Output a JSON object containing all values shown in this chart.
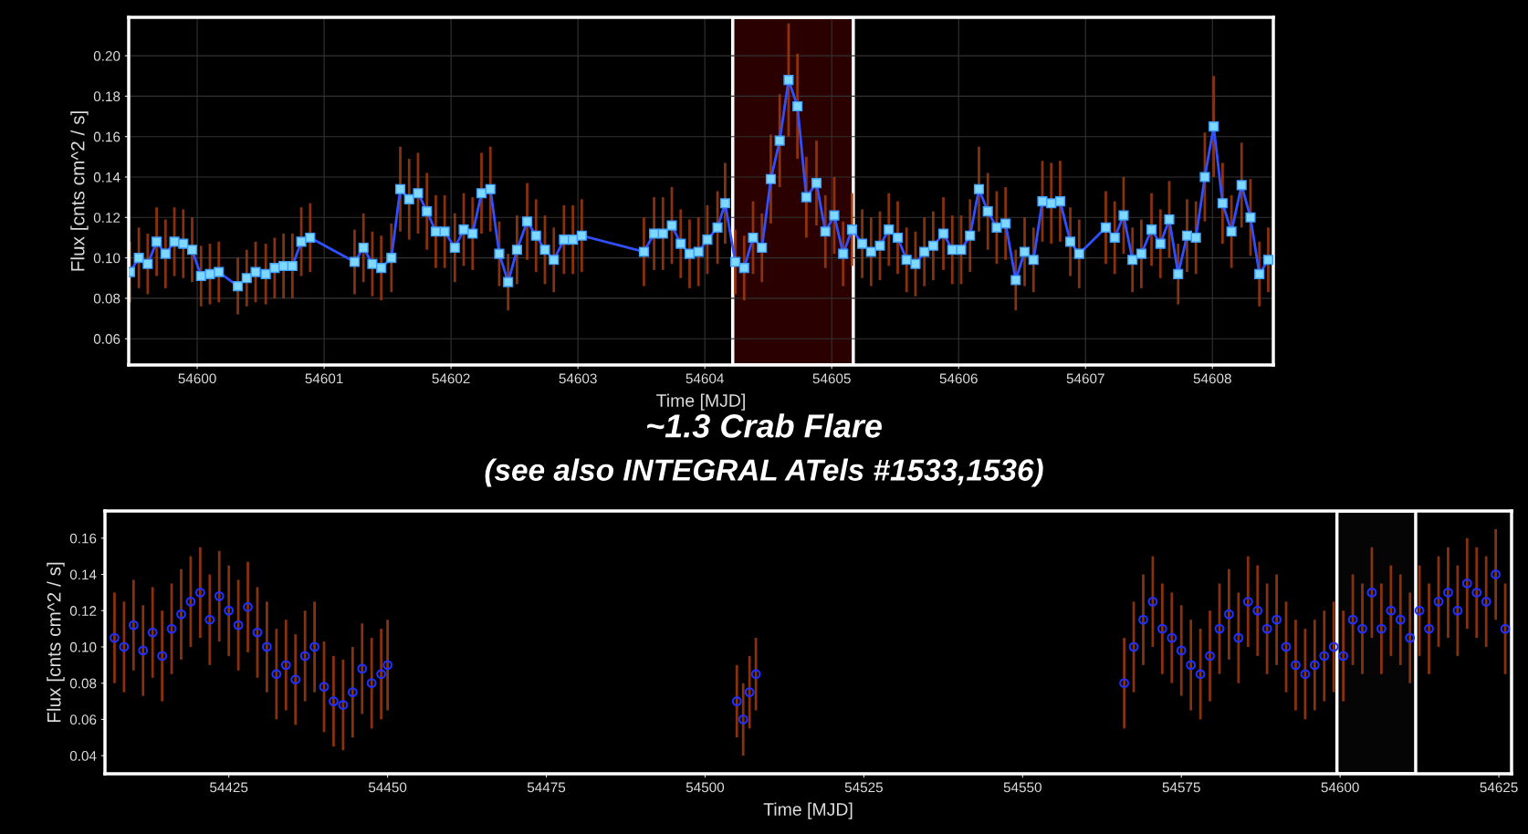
{
  "chart_data": [
    {
      "type": "line",
      "xlabel": "Time [MJD]",
      "ylabel": "Flux [cnts cm^2 / s]",
      "annotations": [
        "~1.3 Crab Flare",
        "(see also INTEGRAL ATels #1533,1536)"
      ],
      "xlim": [
        54599.46,
        54608.48
      ],
      "ylim": [
        0.047,
        0.219
      ],
      "xticks": [
        54600,
        54601,
        54602,
        54603,
        54604,
        54605,
        54606,
        54607,
        54608
      ],
      "yticks": [
        {
          "value": 0.06,
          "label": "0.06"
        },
        {
          "value": 0.08,
          "label": "0.08"
        },
        {
          "value": 0.1,
          "label": "0.10"
        },
        {
          "value": 0.12,
          "label": "0.12"
        },
        {
          "value": 0.14,
          "label": "0.14"
        },
        {
          "value": 0.16,
          "label": "0.16"
        },
        {
          "value": 0.18,
          "label": "0.18"
        },
        {
          "value": 0.2,
          "label": "0.20"
        }
      ],
      "grid": true,
      "marker": "square",
      "line_style": "solid",
      "bands": [
        {
          "axis": "x",
          "from": 54604.22,
          "to": 54605.17,
          "color": "#2a0000"
        }
      ],
      "series": [
        {
          "color": "#3050ff",
          "x": [
            54599.47,
            54599.54,
            54599.61,
            54599.68,
            54599.75,
            54599.82,
            54599.89,
            54599.96,
            54600.03,
            54600.1,
            54600.17,
            54600.32,
            54600.39,
            54600.46,
            54600.54,
            54600.61,
            54600.68,
            54600.75,
            54600.82,
            54600.89,
            54601.24,
            54601.31,
            54601.38,
            54601.45,
            54601.53,
            54601.6,
            54601.67,
            54601.74,
            54601.81,
            54601.88,
            54601.95,
            54602.03,
            54602.1,
            54602.17,
            54602.24,
            54602.31,
            54602.38,
            54602.45,
            54602.52,
            54602.6,
            54602.67,
            54602.74,
            54602.81,
            54602.89,
            54602.96,
            54603.03,
            54603.52,
            54603.6,
            54603.67,
            54603.74,
            54603.81,
            54603.88,
            54603.95,
            54604.02,
            54604.1,
            54604.16,
            54604.24,
            54604.31,
            54604.38,
            54604.45,
            54604.52,
            54604.59,
            54604.66,
            54604.73,
            54604.8,
            54604.88,
            54604.95,
            54605.02,
            54605.09,
            54605.16,
            54605.24,
            54605.31,
            54605.38,
            54605.45,
            54605.52,
            54605.59,
            54605.66,
            54605.73,
            54605.8,
            54605.88,
            54605.95,
            54606.02,
            54606.09,
            54606.16,
            54606.23,
            54606.3,
            54606.37,
            54606.45,
            54606.52,
            54606.59,
            54606.66,
            54606.73,
            54606.8,
            54606.88,
            54606.95,
            54607.16,
            54607.23,
            54607.3,
            54607.37,
            54607.44,
            54607.52,
            54607.59,
            54607.66,
            54607.73,
            54607.8,
            54607.87,
            54607.94,
            54608.01,
            54608.08,
            54608.15,
            54608.23,
            54608.3,
            54608.37,
            54608.44
          ],
          "values": [
            0.093,
            0.1,
            0.097,
            0.108,
            0.102,
            0.108,
            0.107,
            0.104,
            0.091,
            0.092,
            0.093,
            0.086,
            0.09,
            0.093,
            0.092,
            0.095,
            0.096,
            0.096,
            0.108,
            0.11,
            0.098,
            0.105,
            0.097,
            0.095,
            0.1,
            0.134,
            0.129,
            0.132,
            0.123,
            0.113,
            0.113,
            0.105,
            0.114,
            0.112,
            0.132,
            0.134,
            0.102,
            0.088,
            0.104,
            0.118,
            0.111,
            0.104,
            0.099,
            0.109,
            0.109,
            0.111,
            0.103,
            0.112,
            0.112,
            0.116,
            0.107,
            0.102,
            0.103,
            0.109,
            0.115,
            0.127,
            0.098,
            0.095,
            0.11,
            0.105,
            0.139,
            0.158,
            0.188,
            0.175,
            0.13,
            0.137,
            0.113,
            0.121,
            0.102,
            0.114,
            0.107,
            0.103,
            0.106,
            0.114,
            0.11,
            0.099,
            0.097,
            0.103,
            0.106,
            0.112,
            0.104,
            0.104,
            0.111,
            0.134,
            0.123,
            0.115,
            0.117,
            0.089,
            0.103,
            0.099,
            0.128,
            0.127,
            0.128,
            0.108,
            0.102,
            0.115,
            0.11,
            0.121,
            0.099,
            0.102,
            0.114,
            0.107,
            0.119,
            0.092,
            0.111,
            0.11,
            0.14,
            0.165,
            0.127,
            0.113,
            0.136,
            0.12,
            0.092,
            0.099
          ],
          "errors": [
            0.015,
            0.015,
            0.015,
            0.017,
            0.017,
            0.017,
            0.017,
            0.016,
            0.015,
            0.015,
            0.015,
            0.014,
            0.014,
            0.015,
            0.015,
            0.015,
            0.016,
            0.016,
            0.017,
            0.017,
            0.016,
            0.017,
            0.016,
            0.016,
            0.017,
            0.021,
            0.02,
            0.02,
            0.019,
            0.018,
            0.018,
            0.017,
            0.018,
            0.018,
            0.02,
            0.021,
            0.016,
            0.014,
            0.017,
            0.019,
            0.018,
            0.017,
            0.016,
            0.017,
            0.017,
            0.018,
            0.017,
            0.018,
            0.018,
            0.019,
            0.017,
            0.017,
            0.017,
            0.017,
            0.018,
            0.02,
            0.016,
            0.016,
            0.018,
            0.017,
            0.022,
            0.023,
            0.028,
            0.026,
            0.02,
            0.021,
            0.018,
            0.019,
            0.016,
            0.018,
            0.017,
            0.017,
            0.017,
            0.018,
            0.018,
            0.016,
            0.016,
            0.017,
            0.017,
            0.018,
            0.017,
            0.017,
            0.018,
            0.021,
            0.019,
            0.018,
            0.018,
            0.015,
            0.017,
            0.016,
            0.02,
            0.02,
            0.02,
            0.017,
            0.017,
            0.018,
            0.018,
            0.019,
            0.016,
            0.017,
            0.018,
            0.017,
            0.019,
            0.015,
            0.018,
            0.018,
            0.022,
            0.025,
            0.02,
            0.018,
            0.021,
            0.019,
            0.016,
            0.016
          ]
        }
      ]
    },
    {
      "type": "scatter",
      "xlabel": "Time [MJD]",
      "ylabel": "Flux [cnts cm^2 / s]",
      "xlim": [
        54405.5,
        54627
      ],
      "ylim": [
        0.03,
        0.175
      ],
      "xticks": [
        54425,
        54450,
        54475,
        54500,
        54525,
        54550,
        54575,
        54600,
        54625
      ],
      "yticks": [
        {
          "value": 0.04,
          "label": "0.04"
        },
        {
          "value": 0.06,
          "label": "0.06"
        },
        {
          "value": 0.08,
          "label": "0.08"
        },
        {
          "value": 0.1,
          "label": "0.10"
        },
        {
          "value": 0.12,
          "label": "0.12"
        },
        {
          "value": 0.14,
          "label": "0.14"
        },
        {
          "value": 0.16,
          "label": "0.16"
        }
      ],
      "grid": false,
      "marker": "circle",
      "bands": [
        {
          "axis": "x",
          "from": 54599.5,
          "to": 54611.9,
          "color": "#050505"
        }
      ],
      "series": [
        {
          "color": "#2030ff",
          "x": [
            54407,
            54408.5,
            54410,
            54411.5,
            54413,
            54414.5,
            54416,
            54417.5,
            54419,
            54420.5,
            54422,
            54423.5,
            54425,
            54426.5,
            54428,
            54429.5,
            54431,
            54432.5,
            54434,
            54435.5,
            54437,
            54438.5,
            54440,
            54441.5,
            54443,
            54444.5,
            54446,
            54447.5,
            54449,
            54450,
            54505,
            54506,
            54507,
            54508,
            54566,
            54567.5,
            54569,
            54570.5,
            54572,
            54573.5,
            54575,
            54576.5,
            54578,
            54579.5,
            54581,
            54582.5,
            54584,
            54585.5,
            54587,
            54588.5,
            54590,
            54591.5,
            54593,
            54594.5,
            54596,
            54597.5,
            54599,
            54600.5,
            54602,
            54603.5,
            54605,
            54606.5,
            54608,
            54609.5,
            54611,
            54612.5,
            54614,
            54615.5,
            54617,
            54618.5,
            54620,
            54621.5,
            54623,
            54624.5,
            54626
          ],
          "values": [
            0.105,
            0.1,
            0.112,
            0.098,
            0.108,
            0.095,
            0.11,
            0.118,
            0.125,
            0.13,
            0.115,
            0.128,
            0.12,
            0.112,
            0.122,
            0.108,
            0.1,
            0.085,
            0.09,
            0.082,
            0.095,
            0.1,
            0.078,
            0.07,
            0.068,
            0.075,
            0.088,
            0.08,
            0.085,
            0.09,
            0.07,
            0.06,
            0.075,
            0.085,
            0.08,
            0.1,
            0.115,
            0.125,
            0.11,
            0.105,
            0.098,
            0.09,
            0.085,
            0.095,
            0.11,
            0.118,
            0.105,
            0.125,
            0.12,
            0.11,
            0.115,
            0.1,
            0.09,
            0.085,
            0.09,
            0.095,
            0.1,
            0.095,
            0.115,
            0.11,
            0.13,
            0.11,
            0.12,
            0.115,
            0.105,
            0.12,
            0.11,
            0.125,
            0.13,
            0.12,
            0.135,
            0.13,
            0.125,
            0.14,
            0.11
          ],
          "errors": [
            0.025,
            0.025,
            0.025,
            0.025,
            0.025,
            0.025,
            0.025,
            0.025,
            0.025,
            0.025,
            0.025,
            0.025,
            0.025,
            0.025,
            0.025,
            0.025,
            0.025,
            0.025,
            0.025,
            0.025,
            0.025,
            0.025,
            0.025,
            0.025,
            0.025,
            0.025,
            0.025,
            0.025,
            0.025,
            0.025,
            0.02,
            0.02,
            0.02,
            0.02,
            0.025,
            0.025,
            0.025,
            0.025,
            0.025,
            0.025,
            0.025,
            0.025,
            0.025,
            0.025,
            0.025,
            0.025,
            0.025,
            0.025,
            0.025,
            0.025,
            0.025,
            0.025,
            0.025,
            0.025,
            0.025,
            0.025,
            0.025,
            0.025,
            0.025,
            0.025,
            0.025,
            0.025,
            0.025,
            0.025,
            0.025,
            0.025,
            0.025,
            0.025,
            0.025,
            0.025,
            0.025,
            0.025,
            0.025,
            0.025,
            0.025
          ]
        }
      ]
    }
  ]
}
